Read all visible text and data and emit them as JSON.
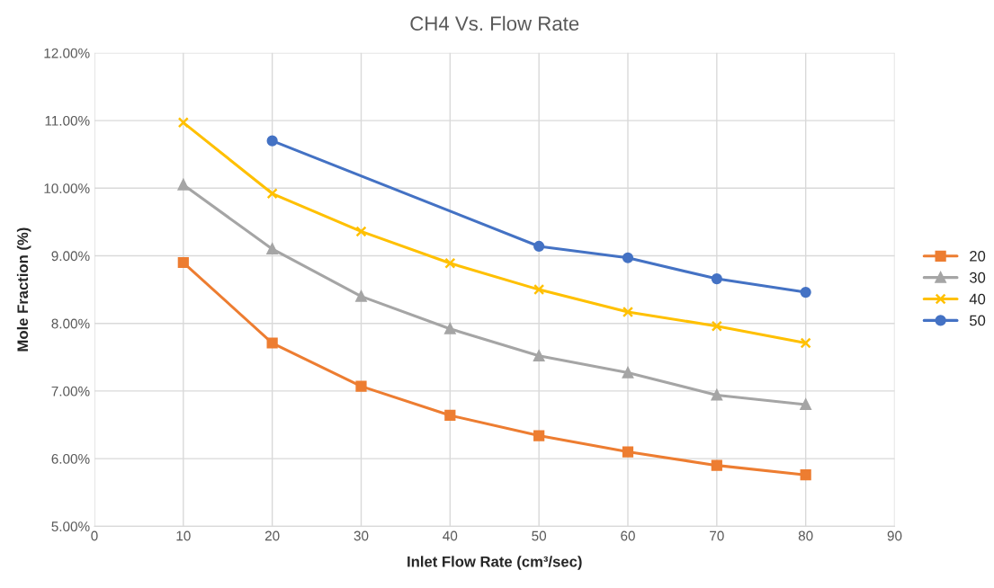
{
  "chart_data": {
    "type": "line",
    "title": "CH4 Vs. Flow Rate",
    "xlabel": "Inlet Flow Rate (cm³/sec)",
    "ylabel": "Mole Fraction (%)",
    "xlim": [
      0,
      90
    ],
    "xticks": [
      0,
      10,
      20,
      30,
      40,
      50,
      60,
      70,
      80,
      90
    ],
    "ylim": [
      5,
      12
    ],
    "yticks": [
      {
        "value": 5,
        "label": "5.00%"
      },
      {
        "value": 6,
        "label": "6.00%"
      },
      {
        "value": 7,
        "label": "7.00%"
      },
      {
        "value": 8,
        "label": "8.00%"
      },
      {
        "value": 9,
        "label": "9.00%"
      },
      {
        "value": 10,
        "label": "10.00%"
      },
      {
        "value": 11,
        "label": "11.00%"
      },
      {
        "value": 12,
        "label": "12.00%"
      }
    ],
    "grid": true,
    "legend": "right",
    "line_style": "solid",
    "series": [
      {
        "name": "20",
        "color": "#ed7d31",
        "marker": "square",
        "x": [
          10,
          20,
          30,
          40,
          50,
          60,
          70,
          80
        ],
        "values": [
          8.9,
          7.71,
          7.07,
          6.64,
          6.34,
          6.1,
          5.9,
          5.76
        ]
      },
      {
        "name": "30",
        "color": "#a5a5a5",
        "marker": "triangle",
        "x": [
          10,
          20,
          30,
          40,
          50,
          60,
          70,
          80
        ],
        "values": [
          10.05,
          9.1,
          8.4,
          7.92,
          7.52,
          7.27,
          6.94,
          6.8
        ]
      },
      {
        "name": "40",
        "color": "#ffc000",
        "marker": "cross",
        "x": [
          10,
          20,
          30,
          40,
          50,
          60,
          70,
          80
        ],
        "values": [
          10.97,
          9.92,
          9.36,
          8.89,
          8.5,
          8.17,
          7.96,
          7.71
        ]
      },
      {
        "name": "50",
        "color": "#4472c4",
        "marker": "circle",
        "x": [
          20,
          50,
          60,
          70,
          80
        ],
        "values": [
          10.7,
          9.14,
          8.97,
          8.66,
          8.46
        ]
      }
    ]
  }
}
